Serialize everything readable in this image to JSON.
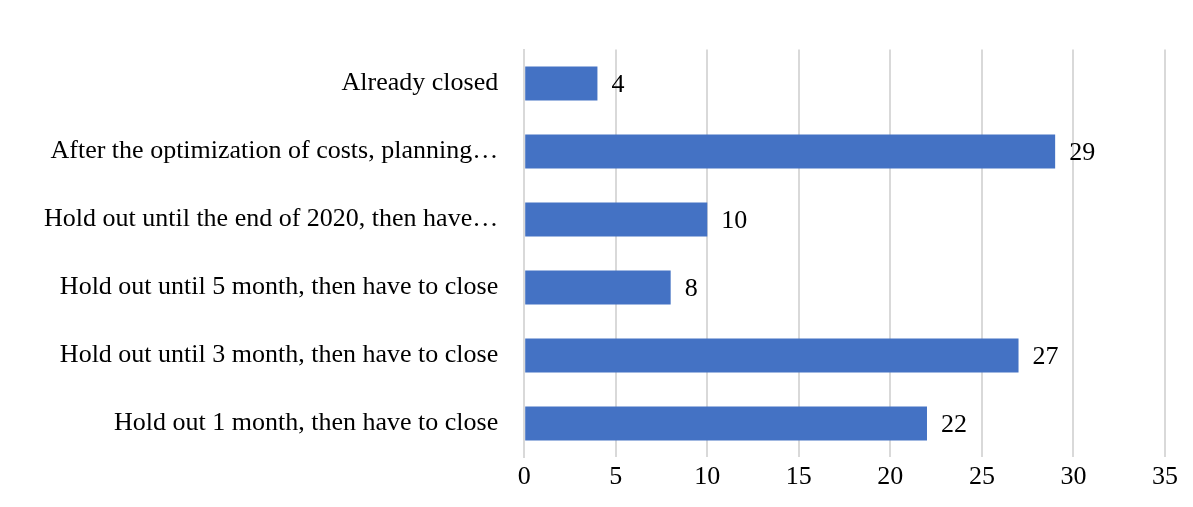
{
  "chart_data": {
    "type": "bar",
    "orientation": "horizontal",
    "categories": [
      "Already closed",
      "After the optimization of costs, planning…",
      "Hold out until the end of 2020, then have…",
      "Hold out until 5 month, then have to close",
      "Hold out until 3 month, then have to close",
      "Hold out 1 month, then have to close"
    ],
    "values": [
      4,
      29,
      10,
      8,
      27,
      22
    ],
    "color": "#4472c4",
    "xlim": [
      0,
      35
    ],
    "xticks": [
      0,
      5,
      10,
      15,
      20,
      25,
      30,
      35
    ],
    "grid": "x",
    "data_labels": true,
    "legend": false
  }
}
